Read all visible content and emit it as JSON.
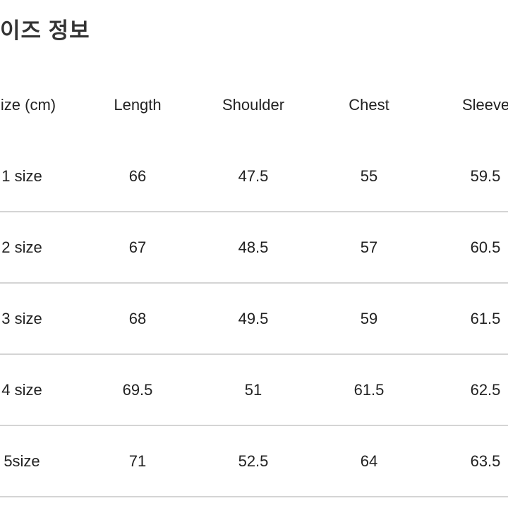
{
  "title": "이즈 정보",
  "table": {
    "headers": [
      "ize (cm)",
      "Length",
      "Shoulder",
      "Chest",
      "Sleeve"
    ],
    "rows": [
      [
        "1 size",
        "66",
        "47.5",
        "55",
        "59.5"
      ],
      [
        "2 size",
        "67",
        "48.5",
        "57",
        "60.5"
      ],
      [
        "3 size",
        "68",
        "49.5",
        "59",
        "61.5"
      ],
      [
        "4 size",
        "69.5",
        "51",
        "61.5",
        "62.5"
      ],
      [
        "5size",
        "71",
        "52.5",
        "64",
        "63.5"
      ]
    ]
  }
}
